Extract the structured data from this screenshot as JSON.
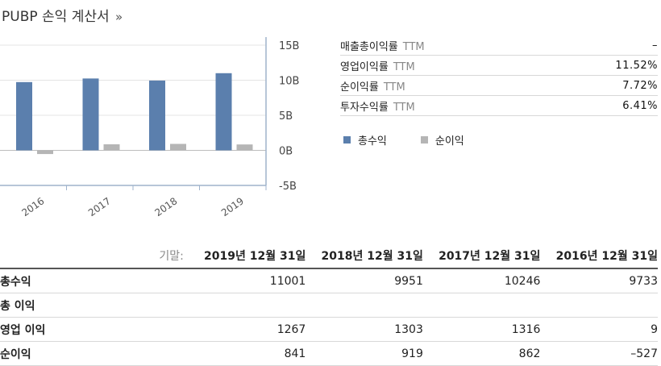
{
  "header": {
    "title": "PUBP 손익 계산서",
    "more": "»"
  },
  "stats": [
    {
      "label": "매출총이익률",
      "suffix": "TTM",
      "value": "–"
    },
    {
      "label": "영업이익률",
      "suffix": "TTM",
      "value": "11.52%"
    },
    {
      "label": "순이익률",
      "suffix": "TTM",
      "value": "7.72%"
    },
    {
      "label": "투자수익률",
      "suffix": "TTM",
      "value": "6.41%"
    }
  ],
  "legend": [
    {
      "label": "총수익",
      "color": "#5b7fad"
    },
    {
      "label": "순이익",
      "color": "#b5b5b5"
    }
  ],
  "chart_data": {
    "type": "bar",
    "categories": [
      "2016",
      "2017",
      "2018",
      "2019"
    ],
    "series": [
      {
        "name": "총수익",
        "values": [
          9.733,
          10.246,
          9.951,
          11.001
        ],
        "color": "#5b7fad"
      },
      {
        "name": "순이익",
        "values": [
          -0.527,
          0.862,
          0.919,
          0.841
        ],
        "color": "#b5b5b5"
      }
    ],
    "yticks": [
      "15B",
      "10B",
      "5B",
      "0B",
      "-5B"
    ],
    "ytick_values": [
      15,
      10,
      5,
      0,
      -5
    ],
    "ylim": [
      -5,
      15
    ],
    "grid": true,
    "legend": "right"
  },
  "table": {
    "period_label": "기말:",
    "columns": [
      "2019년 12월 31일",
      "2018년 12월 31일",
      "2017년 12월 31일",
      "2016년 12월 31일"
    ],
    "rows": [
      {
        "label": "총수익",
        "values": [
          "11001",
          "9951",
          "10246",
          "9733"
        ]
      },
      {
        "label": "총 이익",
        "values": [
          "",
          "",
          "",
          ""
        ]
      },
      {
        "label": "영업 이익",
        "values": [
          "1267",
          "1303",
          "1316",
          "9"
        ]
      },
      {
        "label": "순이익",
        "values": [
          "841",
          "919",
          "862",
          "–527"
        ]
      }
    ]
  }
}
